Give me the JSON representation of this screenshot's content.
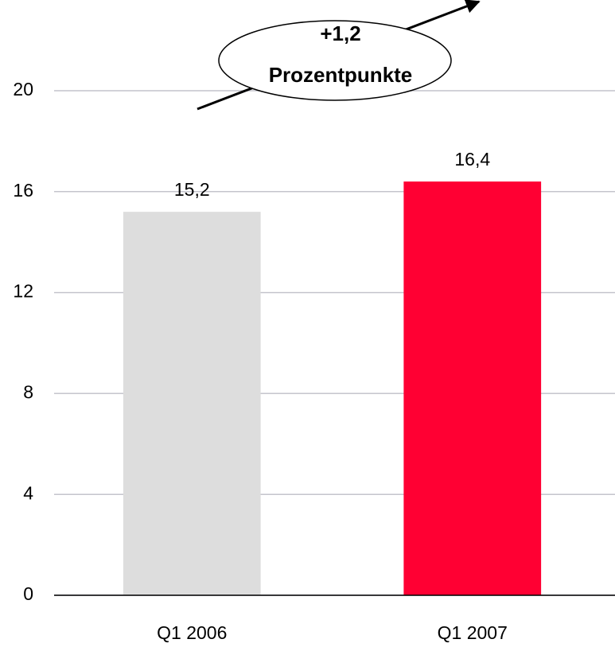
{
  "chart_data": {
    "type": "bar",
    "categories": [
      "Q1 2006",
      "Q1 2007"
    ],
    "values": [
      15.2,
      16.4
    ],
    "value_labels": [
      "15,2",
      "16,4"
    ],
    "colors": [
      "#dddddd",
      "#ff0033"
    ],
    "ylim": [
      0,
      20
    ],
    "yticks": [
      0,
      4,
      8,
      12,
      16,
      20
    ],
    "grid": true,
    "annotation": [
      "+1,2",
      "Prozentpunkte"
    ]
  }
}
